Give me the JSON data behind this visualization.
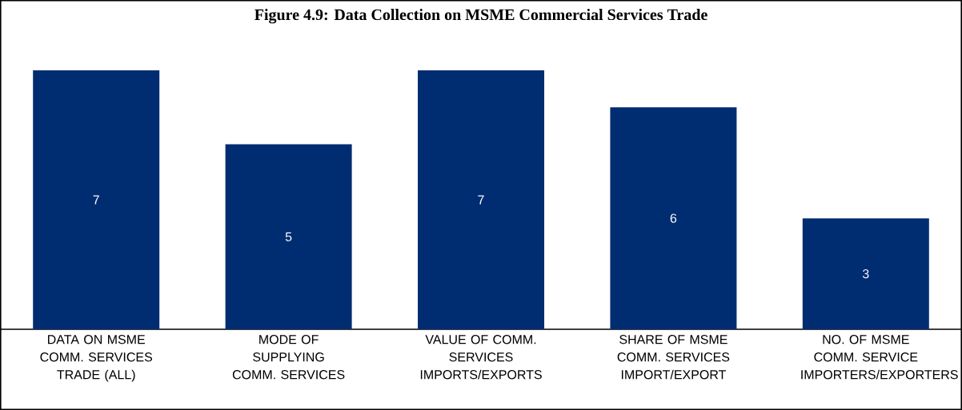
{
  "chart_data": {
    "type": "bar",
    "title": "Figure 4.9: Data Collection on MSME Commercial Services Trade",
    "categories": [
      "DATA ON MSME COMM. SERVICES TRADE (ALL)",
      "MODE OF SUPPLYING COMM. SERVICES",
      "VALUE OF COMM. SERVICES IMPORTS/EXPORTS",
      "SHARE OF MSME COMM. SERVICES IMPORT/EXPORT",
      "NO. OF MSME COMM. SERVICE IMPORTERS/EXPORTERS"
    ],
    "values": [
      7,
      5,
      7,
      6,
      3
    ],
    "color": "#002d72",
    "data_labels": true
  }
}
